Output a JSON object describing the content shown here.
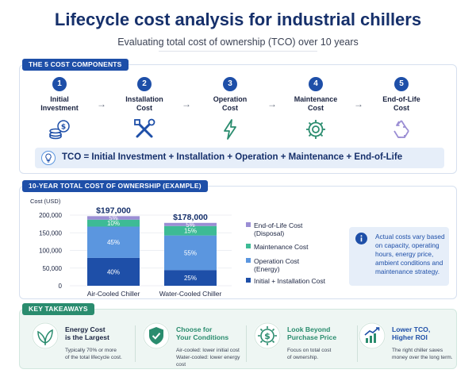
{
  "header": {
    "title": "Lifecycle cost analysis for industrial chillers",
    "subtitle": "Evaluating total cost of ownership (TCO) over 10 years"
  },
  "components": {
    "section_label": "THE 5 COST COMPONENTS",
    "steps": [
      {
        "num": "1",
        "label": "Initial\nInvestment",
        "icon": "coins-icon"
      },
      {
        "num": "2",
        "label": "Installation\nCost",
        "icon": "tools-icon"
      },
      {
        "num": "3",
        "label": "Operation\nCost",
        "icon": "lightning-icon"
      },
      {
        "num": "4",
        "label": "Maintenance\nCost",
        "icon": "gear-icon"
      },
      {
        "num": "5",
        "label": "End-of-Life\nCost",
        "icon": "recycle-icon"
      }
    ],
    "arrow": "→",
    "formula": "TCO = Initial Investment + Installation + Operation + Maintenance + End-of-Life"
  },
  "tco": {
    "section_label": "10-YEAR TOTAL COST OF OWNERSHIP (EXAMPLE)",
    "note": "Actual costs vary based on capacity, operating hours, energy price, ambient conditions and maintenance strategy."
  },
  "chart_data": {
    "type": "bar",
    "stacked": true,
    "ylabel": "Cost (USD)",
    "ylim": [
      0,
      200000
    ],
    "yticks": [
      0,
      50000,
      100000,
      150000,
      200000
    ],
    "ytick_labels": [
      "0",
      "50,000",
      "100,000",
      "150,000",
      "200,000"
    ],
    "categories": [
      "Air-Cooled Chiller",
      "Water-Cooled Chiller"
    ],
    "totals": [
      197000,
      178000
    ],
    "total_labels": [
      "$197,000",
      "$178,000"
    ],
    "series": [
      {
        "name": "Initial + Installation Cost",
        "color": "#1e4fa8",
        "share": [
          0.4,
          0.25
        ],
        "labels": [
          "40%",
          "25%"
        ]
      },
      {
        "name": "Operation Cost (Energy)",
        "color": "#5b96df",
        "share": [
          0.45,
          0.55
        ],
        "labels": [
          "45%",
          "55%"
        ]
      },
      {
        "name": "Maintenance Cost",
        "color": "#3dbb95",
        "share": [
          0.1,
          0.15
        ],
        "labels": [
          "10%",
          "15%"
        ]
      },
      {
        "name": "End-of-Life Cost (Disposal)",
        "color": "#9b8ed4",
        "share": [
          0.05,
          0.05
        ],
        "labels": [
          "5%",
          "5%"
        ]
      }
    ],
    "legend": [
      {
        "text": "End-of-Life Cost\n(Disposal)",
        "color": "#9b8ed4"
      },
      {
        "text": "Maintenance Cost",
        "color": "#3dbb95"
      },
      {
        "text": "Operation Cost\n(Energy)",
        "color": "#5b96df"
      },
      {
        "text": "Initial + Installation Cost",
        "color": "#1e4fa8"
      }
    ]
  },
  "takeaways": {
    "section_label": "KEY TAKEAWAYS",
    "items": [
      {
        "title": "Energy Cost\nis the Largest",
        "desc": "Typically 70% or more\nof the total lifecycle cost.",
        "icon": "leaf-icon",
        "title_color": "#1a2340"
      },
      {
        "title": "Choose for\nYour Conditions",
        "desc": "Air-cooled: lower initial cost\nWater-cooled: lower energy cost",
        "icon": "shield-check-icon",
        "title_color": "#2a8c6e"
      },
      {
        "title": "Look Beyond\nPurchase Price",
        "desc": "Focus on total cost\nof ownership.",
        "icon": "dollar-gear-icon",
        "title_color": "#2a8c6e"
      },
      {
        "title": "Lower TCO,\nHigher ROI",
        "desc": "The right chiller saves\nmoney over the long term.",
        "icon": "growth-chart-icon",
        "title_color": "#1e4fa8"
      }
    ]
  },
  "colors": {
    "navy": "#16306b",
    "blue": "#1e4fa8",
    "green": "#2a8c6e",
    "lightblue": "#5b96df",
    "teal": "#3dbb95",
    "purple": "#9b8ed4"
  }
}
